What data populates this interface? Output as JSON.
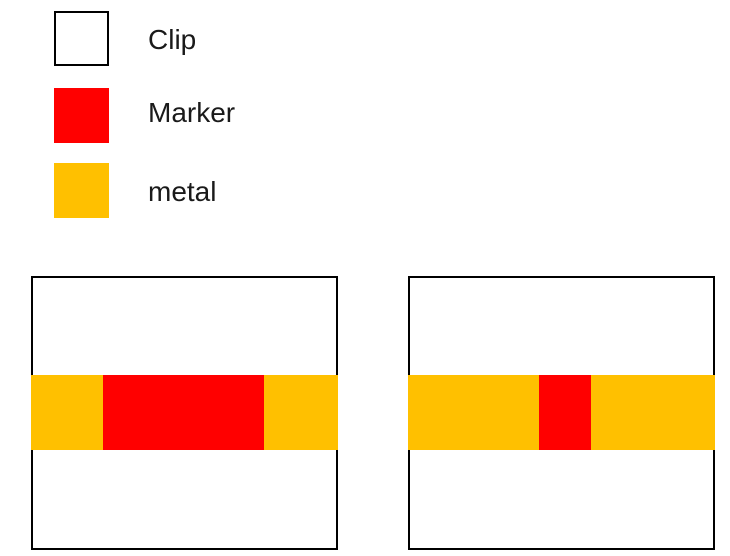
{
  "colors": {
    "clip": "#ffffff",
    "marker": "#ff0000",
    "metal": "#ffc000"
  },
  "legend": [
    {
      "label": "Clip",
      "swatch": "clip"
    },
    {
      "label": "Marker",
      "swatch": "marker"
    },
    {
      "label": "metal",
      "swatch": "metal"
    }
  ]
}
